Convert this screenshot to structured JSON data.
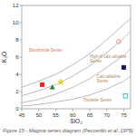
{
  "chart_data": {
    "type": "scatter",
    "xlabel": "SiO₂",
    "ylabel": "K₂O",
    "caption": "Figure 15 - Magma series diagram  (Peccerillo et al.,1976)",
    "xlim": [
      45,
      77
    ],
    "ylim": [
      0,
      12
    ],
    "xticks": [
      45,
      50,
      55,
      60,
      65,
      70,
      75
    ],
    "yticks": [
      0,
      2,
      4,
      6,
      8,
      10,
      12
    ],
    "grid": false,
    "series": [
      {
        "type": "line",
        "color": "#bbbbbb",
        "x": [
          45,
          50,
          55,
          60,
          65,
          70,
          75,
          77
        ],
        "values": [
          0.3,
          0.5,
          0.8,
          1.1,
          1.6,
          2.3,
          3.2,
          3.8
        ]
      },
      {
        "type": "line",
        "color": "#bbbbbb",
        "x": [
          45,
          50,
          55,
          60,
          65,
          70,
          75,
          77
        ],
        "values": [
          0.7,
          1.1,
          1.7,
          2.5,
          3.5,
          4.8,
          6.2,
          7.0
        ]
      },
      {
        "type": "line",
        "color": "#bbbbbb",
        "x": [
          45,
          50,
          55,
          60,
          65,
          70,
          75,
          77
        ],
        "values": [
          1.5,
          2.1,
          2.8,
          3.8,
          5.0,
          6.5,
          8.2,
          9.0
        ]
      },
      {
        "type": "line",
        "color": "#bbbbbb",
        "x": [
          45,
          50,
          55,
          60,
          65,
          70,
          75,
          77
        ],
        "values": [
          2.5,
          3.2,
          4.0,
          5.1,
          6.4,
          8.0,
          9.8,
          10.5
        ]
      },
      {
        "type": "scatter",
        "marker": "square",
        "color": "#dd2222",
        "x": [
          51.0
        ],
        "values": [
          2.8
        ]
      },
      {
        "type": "scatter",
        "marker": "triangle",
        "color": "#228833",
        "x": [
          54.0
        ],
        "values": [
          2.5
        ]
      },
      {
        "type": "scatter",
        "marker": "star",
        "color": "#ddcc22",
        "x": [
          56.5
        ],
        "values": [
          3.1
        ]
      },
      {
        "type": "scatter",
        "marker": "square",
        "color": "#111155",
        "x": [
          75.0
        ],
        "values": [
          4.8
        ]
      },
      {
        "type": "scatter",
        "marker": "circle-open",
        "color": "#ee9999",
        "x": [
          73.5
        ],
        "values": [
          7.8
        ]
      },
      {
        "type": "scatter",
        "marker": "square-open",
        "color": "#44bbcc",
        "x": [
          75.5
        ],
        "values": [
          1.5
        ]
      }
    ],
    "annotations": [
      {
        "text": "Shoshonite Series",
        "x": 47,
        "y": 6.8,
        "color": "#cc7755"
      },
      {
        "text": "High-K calc-alkaline\nSeries",
        "x": 65,
        "y": 5.8,
        "color": "#aa8866"
      },
      {
        "text": "Calc-alkaline\nSeries",
        "x": 67,
        "y": 3.5,
        "color": "#aa8866"
      },
      {
        "text": "Tholeiite Series",
        "x": 63,
        "y": 1.0,
        "color": "#aa8866"
      }
    ]
  }
}
